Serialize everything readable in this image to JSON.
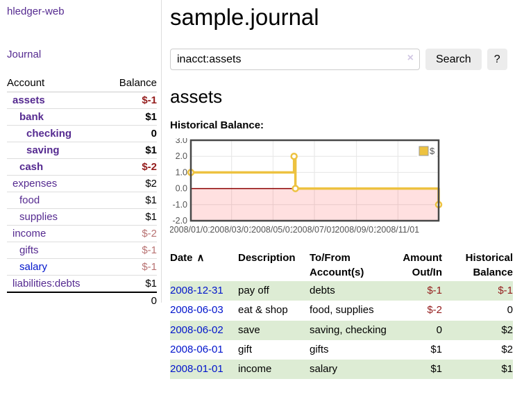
{
  "app": {
    "brand": "hledger-web"
  },
  "colors": {
    "accent_purple": "#552A90",
    "link_blue": "#0014CC",
    "negative": "#941C1C",
    "negative_muted": "#B87272",
    "row_green": "#DDECD4",
    "series_gold": "#EDC240",
    "zero_line": "#8B0000"
  },
  "sidebar": {
    "journal_label": "Journal",
    "accounts_table": {
      "headers": [
        "Account",
        "Balance"
      ],
      "rows": [
        {
          "name": "assets",
          "depth": 1,
          "bold": true,
          "balance": "$-1",
          "balance_style": "negative"
        },
        {
          "name": "bank",
          "depth": 2,
          "bold": true,
          "balance": "$1",
          "balance_style": "normal"
        },
        {
          "name": "checking",
          "depth": 3,
          "bold": true,
          "balance": "0",
          "balance_style": "normal"
        },
        {
          "name": "saving",
          "depth": 3,
          "bold": true,
          "balance": "$1",
          "balance_style": "normal"
        },
        {
          "name": "cash",
          "depth": 2,
          "bold": true,
          "balance": "$-2",
          "balance_style": "negative"
        },
        {
          "name": "expenses",
          "depth": 1,
          "bold": false,
          "balance": "$2",
          "balance_style": "normal"
        },
        {
          "name": "food",
          "depth": 2,
          "bold": false,
          "balance": "$1",
          "balance_style": "normal"
        },
        {
          "name": "supplies",
          "depth": 2,
          "bold": false,
          "balance": "$1",
          "balance_style": "normal"
        },
        {
          "name": "income",
          "depth": 1,
          "bold": false,
          "balance": "$-2",
          "balance_style": "negative-muted"
        },
        {
          "name": "gifts",
          "depth": 2,
          "bold": false,
          "balance": "$-1",
          "balance_style": "negative-muted"
        },
        {
          "name": "salary",
          "depth": 2,
          "bold": false,
          "balance": "$-1",
          "balance_style": "negative-muted",
          "link_style": "unvisited"
        },
        {
          "name": "liabilities:debts",
          "depth": 1,
          "bold": false,
          "balance": "$1",
          "balance_style": "normal"
        }
      ],
      "total": "0"
    }
  },
  "main": {
    "title": "sample.journal",
    "search": {
      "value": "inacct:assets",
      "clear_icon": "×",
      "button_label": "Search",
      "help_label": "?"
    },
    "account_heading": "assets"
  },
  "chart_data": {
    "type": "line",
    "title": "Historical Balance:",
    "xlim": [
      "2008-01-01",
      "2008-12-31"
    ],
    "ylim": [
      -2,
      3
    ],
    "x_ticks": [
      {
        "date": "2008-01-01",
        "label": "2008/01/01"
      },
      {
        "date": "2008-03-01",
        "label": "2008/03/01"
      },
      {
        "date": "2008-05-01",
        "label": "2008/05/01"
      },
      {
        "date": "2008-07-01",
        "label": "2008/07/01"
      },
      {
        "date": "2008-09-01",
        "label": "2008/09/01"
      },
      {
        "date": "2008-11-01",
        "label": "2008/11/01"
      }
    ],
    "y_ticks": [
      {
        "value": 3,
        "label": "3.0"
      },
      {
        "value": 2,
        "label": "2.0"
      },
      {
        "value": 1,
        "label": "1.0"
      },
      {
        "value": 0,
        "label": "0.0"
      },
      {
        "value": -1,
        "label": "-1.0"
      },
      {
        "value": -2,
        "label": "-2.0"
      }
    ],
    "grid": true,
    "zero_line_color": "#8B0000",
    "negative_region": true,
    "legend": {
      "label": "$",
      "position": "top-right"
    },
    "series": [
      {
        "name": "$",
        "color": "#EDC240",
        "step": true,
        "points": [
          [
            "2008-01-01",
            1
          ],
          [
            "2008-06-01",
            2
          ],
          [
            "2008-06-03",
            0
          ],
          [
            "2008-12-31",
            -1
          ]
        ]
      }
    ]
  },
  "transactions": {
    "headers": {
      "date": "Date",
      "sort_icon": "∧",
      "description": "Description",
      "account_line1": "To/From",
      "account_line2": "Account(s)",
      "amount_line1": "Amount",
      "amount_line2": "Out/In",
      "balance_line1": "Historical",
      "balance_line2": "Balance"
    },
    "rows": [
      {
        "date": "2008-12-31",
        "description": "pay off",
        "accounts": "debts",
        "amount": "$-1",
        "amount_negative": true,
        "balance": "$-1",
        "balance_negative": true
      },
      {
        "date": "2008-06-03",
        "description": "eat & shop",
        "accounts": "food, supplies",
        "amount": "$-2",
        "amount_negative": true,
        "balance": "0",
        "balance_negative": false
      },
      {
        "date": "2008-06-02",
        "description": "save",
        "accounts": "saving, checking",
        "amount": "0",
        "amount_negative": false,
        "balance": "$2",
        "balance_negative": false
      },
      {
        "date": "2008-06-01",
        "description": "gift",
        "accounts": "gifts",
        "amount": "$1",
        "amount_negative": false,
        "balance": "$2",
        "balance_negative": false
      },
      {
        "date": "2008-01-01",
        "description": "income",
        "accounts": "salary",
        "amount": "$1",
        "amount_negative": false,
        "balance": "$1",
        "balance_negative": false
      }
    ]
  }
}
